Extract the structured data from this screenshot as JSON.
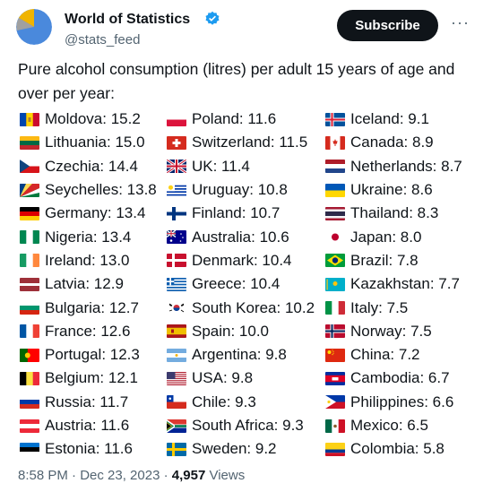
{
  "account": {
    "name": "World of Statistics",
    "handle": "@stats_feed",
    "subscribe_label": "Subscribe"
  },
  "tweet": {
    "text": "Pure alcohol consumption (litres) per adult 15 years of age and over per year:"
  },
  "columns": [
    [
      {
        "label": "Moldova: 15.2",
        "flag": "moldova-flag"
      },
      {
        "label": "Lithuania: 15.0",
        "flag": "lithuania-flag"
      },
      {
        "label": "Czechia: 14.4",
        "flag": "czechia-flag"
      },
      {
        "label": "Seychelles: 13.8",
        "flag": "seychelles-flag"
      },
      {
        "label": "Germany: 13.4",
        "flag": "germany-flag"
      },
      {
        "label": "Nigeria: 13.4",
        "flag": "nigeria-flag"
      },
      {
        "label": "Ireland: 13.0",
        "flag": "ireland-flag"
      },
      {
        "label": "Latvia: 12.9",
        "flag": "latvia-flag"
      },
      {
        "label": "Bulgaria: 12.7",
        "flag": "bulgaria-flag"
      },
      {
        "label": "France: 12.6",
        "flag": "france-flag"
      },
      {
        "label": "Portugal: 12.3",
        "flag": "portugal-flag"
      },
      {
        "label": "Belgium: 12.1",
        "flag": "belgium-flag"
      },
      {
        "label": "Russia: 11.7",
        "flag": "russia-flag"
      },
      {
        "label": "Austria: 11.6",
        "flag": "austria-flag"
      },
      {
        "label": "Estonia: 11.6",
        "flag": "estonia-flag"
      }
    ],
    [
      {
        "label": "Poland: 11.6",
        "flag": "poland-flag"
      },
      {
        "label": "Switzerland: 11.5",
        "flag": "switzerland-flag"
      },
      {
        "label": "UK: 11.4",
        "flag": "uk-flag"
      },
      {
        "label": "Uruguay: 10.8",
        "flag": "uruguay-flag"
      },
      {
        "label": "Finland: 10.7",
        "flag": "finland-flag"
      },
      {
        "label": "Australia: 10.6",
        "flag": "australia-flag"
      },
      {
        "label": "Denmark: 10.4",
        "flag": "denmark-flag"
      },
      {
        "label": "Greece: 10.4",
        "flag": "greece-flag"
      },
      {
        "label": "South Korea: 10.2",
        "flag": "south-korea-flag"
      },
      {
        "label": "Spain: 10.0",
        "flag": "spain-flag"
      },
      {
        "label": "Argentina: 9.8",
        "flag": "argentina-flag"
      },
      {
        "label": "USA: 9.8",
        "flag": "usa-flag"
      },
      {
        "label": "Chile: 9.3",
        "flag": "chile-flag"
      },
      {
        "label": "South Africa: 9.3",
        "flag": "south-africa-flag"
      },
      {
        "label": "Sweden: 9.2",
        "flag": "sweden-flag"
      }
    ],
    [
      {
        "label": "Iceland: 9.1",
        "flag": "iceland-flag"
      },
      {
        "label": "Canada: 8.9",
        "flag": "canada-flag"
      },
      {
        "label": "Netherlands: 8.7",
        "flag": "netherlands-flag"
      },
      {
        "label": "Ukraine: 8.6",
        "flag": "ukraine-flag"
      },
      {
        "label": "Thailand: 8.3",
        "flag": "thailand-flag"
      },
      {
        "label": "Japan: 8.0",
        "flag": "japan-flag"
      },
      {
        "label": "Brazil: 7.8",
        "flag": "brazil-flag"
      },
      {
        "label": "Kazakhstan: 7.7",
        "flag": "kazakhstan-flag"
      },
      {
        "label": "Italy: 7.5",
        "flag": "italy-flag"
      },
      {
        "label": "Norway: 7.5",
        "flag": "norway-flag"
      },
      {
        "label": "China: 7.2",
        "flag": "china-flag"
      },
      {
        "label": "Cambodia: 6.7",
        "flag": "cambodia-flag"
      },
      {
        "label": "Philippines: 6.6",
        "flag": "philippines-flag"
      },
      {
        "label": "Mexico: 6.5",
        "flag": "mexico-flag"
      },
      {
        "label": "Colombia: 5.8",
        "flag": "colombia-flag"
      }
    ]
  ],
  "footer": {
    "time": "8:58 PM · Dec 23, 2023 · ",
    "views_count": "4,957",
    "views_label": " Views"
  },
  "colors": {
    "text": "#0f1419",
    "secondary": "#536471",
    "verified": "#1d9bf0"
  }
}
